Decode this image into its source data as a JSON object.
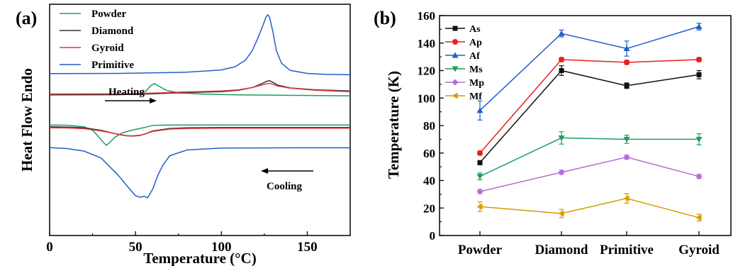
{
  "chart_data": [
    {
      "panel_label": "(a)",
      "type": "line",
      "xlabel": "Temperature (°C)",
      "ylabel": "Heat Flow Endo",
      "xlim": [
        0,
        175
      ],
      "xticks": [
        0,
        50,
        100,
        150
      ],
      "y_ticks_shown": false,
      "legend_position": "top-left",
      "annotations": [
        {
          "text": "Heating",
          "arrow": "right"
        },
        {
          "text": "Cooling",
          "arrow": "left"
        }
      ],
      "series": [
        {
          "name": "Powder",
          "color": "#1e9e5e",
          "heating": {
            "x": [
              0,
              40,
              52,
              56,
              59,
              61,
              64,
              68,
              75,
              90,
              110,
              140,
              175
            ],
            "y": [
              0.61,
              0.61,
              0.613,
              0.624,
              0.649,
              0.657,
              0.644,
              0.628,
              0.617,
              0.611,
              0.608,
              0.606,
              0.604
            ]
          },
          "cooling": {
            "x": [
              0,
              10,
              20,
              25,
              28,
              31,
              33,
              35,
              38,
              42,
              46,
              50,
              55,
              60,
              70,
              100,
              140,
              175
            ],
            "y": [
              0.478,
              0.477,
              0.47,
              0.455,
              0.432,
              0.405,
              0.39,
              0.402,
              0.425,
              0.443,
              0.452,
              0.459,
              0.467,
              0.476,
              0.478,
              0.478,
              0.478,
              0.478
            ]
          }
        },
        {
          "name": "Diamond",
          "color": "#333333",
          "heating": {
            "x": [
              0,
              40,
              60,
              80,
              100,
              110,
              118,
              123,
              126,
              128,
              130,
              133,
              140,
              155,
              175
            ],
            "y": [
              0.608,
              0.609,
              0.613,
              0.618,
              0.622,
              0.628,
              0.64,
              0.655,
              0.666,
              0.67,
              0.662,
              0.65,
              0.638,
              0.63,
              0.625
            ]
          },
          "cooling": {
            "x": [
              0,
              10,
              20,
              30,
              40,
              45,
              48,
              52,
              56,
              60,
              70,
              80,
              100,
              140,
              175
            ],
            "y": [
              0.47,
              0.469,
              0.466,
              0.455,
              0.437,
              0.431,
              0.43,
              0.432,
              0.44,
              0.452,
              0.463,
              0.466,
              0.467,
              0.467,
              0.467
            ]
          }
        },
        {
          "name": "Gyroid",
          "color": "#e0353a",
          "heating": {
            "x": [
              0,
              40,
              60,
              80,
              100,
              110,
              118,
              123,
              126,
              128,
              130,
              133,
              140,
              155,
              175
            ],
            "y": [
              0.612,
              0.613,
              0.616,
              0.621,
              0.625,
              0.63,
              0.64,
              0.65,
              0.656,
              0.658,
              0.654,
              0.646,
              0.637,
              0.628,
              0.622
            ]
          },
          "cooling": {
            "x": [
              0,
              10,
              20,
              30,
              40,
              45,
              48,
              52,
              56,
              60,
              70,
              80,
              100,
              140,
              175
            ],
            "y": [
              0.466,
              0.465,
              0.462,
              0.452,
              0.438,
              0.432,
              0.431,
              0.433,
              0.44,
              0.45,
              0.46,
              0.463,
              0.464,
              0.464,
              0.464
            ]
          }
        },
        {
          "name": "Primitive",
          "color": "#1f5fc9",
          "heating": {
            "x": [
              0,
              40,
              80,
              100,
              108,
              114,
              118,
              121,
              124,
              126,
              127,
              128,
              130,
              132,
              135,
              140,
              150,
              160,
              175
            ],
            "y": [
              0.7,
              0.701,
              0.706,
              0.716,
              0.73,
              0.758,
              0.8,
              0.85,
              0.905,
              0.945,
              0.955,
              0.945,
              0.88,
              0.8,
              0.745,
              0.714,
              0.701,
              0.697,
              0.695
            ]
          },
          "cooling": {
            "x": [
              0,
              10,
              20,
              30,
              40,
              45,
              50,
              53,
              55,
              57,
              60,
              63,
              66,
              70,
              80,
              100,
              140,
              175
            ],
            "y": [
              0.38,
              0.376,
              0.365,
              0.335,
              0.26,
              0.215,
              0.172,
              0.165,
              0.17,
              0.163,
              0.2,
              0.26,
              0.305,
              0.345,
              0.37,
              0.378,
              0.379,
              0.379
            ]
          }
        }
      ]
    },
    {
      "panel_label": "(b)",
      "type": "line",
      "categories": [
        "Powder",
        "Diamond",
        "Primitive",
        "Gyroid"
      ],
      "ylabel": "Temperature (K)",
      "ylim": [
        0,
        160
      ],
      "yticks": [
        0,
        20,
        40,
        60,
        80,
        100,
        120,
        140,
        160
      ],
      "legend_position": "top-left",
      "series": [
        {
          "name": "As",
          "color": "#111111",
          "marker": "square",
          "values": [
            53,
            120,
            109,
            117
          ],
          "errors": [
            1.5,
            3.5,
            2,
            3
          ]
        },
        {
          "name": "Ap",
          "color": "#e8201c",
          "marker": "circle",
          "values": [
            60,
            128,
            126,
            128
          ],
          "errors": [
            1.5,
            1.5,
            1.5,
            1.5
          ]
        },
        {
          "name": "Af",
          "color": "#1f5fc9",
          "marker": "triangle-up",
          "values": [
            91,
            147,
            136,
            152
          ],
          "errors": [
            7,
            2.5,
            5.5,
            2.5
          ]
        },
        {
          "name": "Ms",
          "color": "#1e9e5e",
          "marker": "triangle-down",
          "values": [
            43,
            71,
            70,
            70
          ],
          "errors": [
            2.5,
            4.5,
            3,
            4
          ]
        },
        {
          "name": "Mp",
          "color": "#b66cd6",
          "marker": "diamond",
          "values": [
            32,
            46,
            57,
            43
          ],
          "errors": [
            1.5,
            1.5,
            1.5,
            1.5
          ]
        },
        {
          "name": "Mf",
          "color": "#d99b00",
          "marker": "triangle-left",
          "values": [
            21,
            16,
            27,
            13
          ],
          "errors": [
            3.5,
            3,
            3.5,
            2.5
          ]
        }
      ]
    }
  ]
}
